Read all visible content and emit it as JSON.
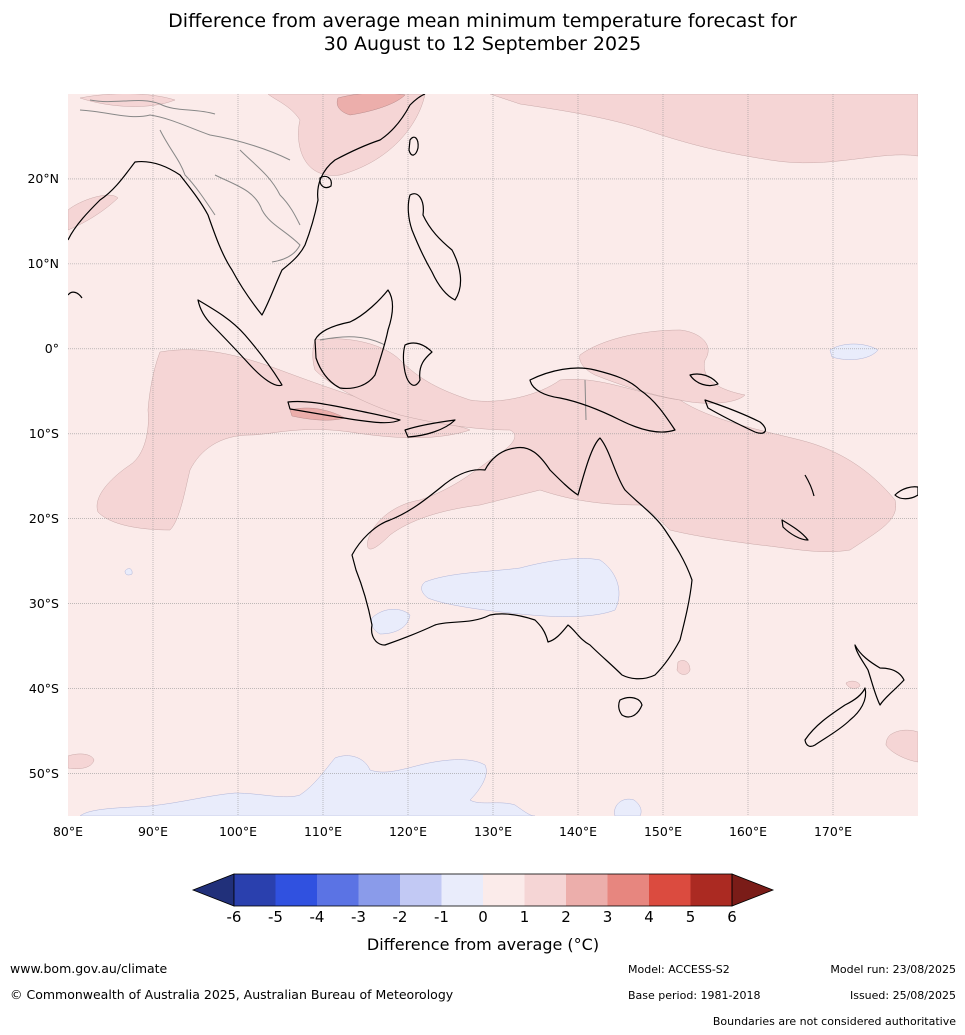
{
  "title": {
    "line1": "Difference from average mean minimum temperature forecast for",
    "line2": "30 August to 12 September 2025"
  },
  "map": {
    "lon_ticks": [
      "80°E",
      "90°E",
      "100°E",
      "110°E",
      "120°E",
      "130°E",
      "140°E",
      "150°E",
      "160°E",
      "170°E"
    ],
    "lat_ticks": [
      "20°N",
      "10°N",
      "0°",
      "10°S",
      "20°S",
      "30°S",
      "40°S",
      "50°S"
    ],
    "lon_range": [
      80,
      180
    ],
    "lat_range": [
      -55,
      30
    ],
    "background_anomaly_class": "0 to 1",
    "colors": {
      "cls_0_1": "#fbebea",
      "cls_1_2": "#f5d5d5",
      "cls_2_3": "#ecaeab",
      "cls_m1_0": "#e9ecfb",
      "coast": "#000000",
      "borders": "#888888",
      "grid": "#999999"
    }
  },
  "colorbar": {
    "ticks": [
      "-6",
      "-5",
      "-4",
      "-3",
      "-2",
      "-1",
      "0",
      "1",
      "2",
      "3",
      "4",
      "5",
      "6"
    ],
    "colors": [
      "#21307a",
      "#2a40ae",
      "#3051e0",
      "#5b73e4",
      "#8a9bea",
      "#c2c9f4",
      "#e9ecfb",
      "#fbebea",
      "#f5d5d5",
      "#ecaeab",
      "#e7867f",
      "#db4b3f",
      "#ab2a22",
      "#7a1c18"
    ],
    "label": "Difference from average (°C)"
  },
  "footer": {
    "website": "www.bom.gov.au/climate",
    "copyright": "© Commonwealth of Australia 2025, Australian Bureau of Meteorology",
    "model": "Model: ACCESS-S2",
    "base_period": "Base period: 1981-2018",
    "model_run": "Model run: 23/08/2025",
    "issued": "Issued: 25/08/2025",
    "disclaimer": "Boundaries are not considered authoritative"
  }
}
